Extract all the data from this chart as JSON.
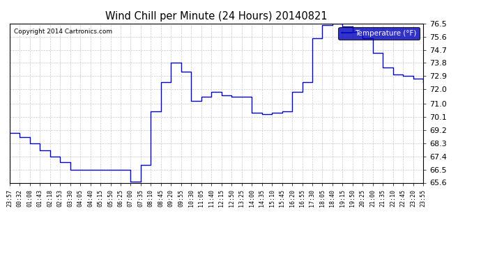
{
  "title": "Wind Chill per Minute (24 Hours) 20140821",
  "copyright": "Copyright 2014 Cartronics.com",
  "legend_label": "Temperature (°F)",
  "legend_bg": "#0000bb",
  "legend_text_color": "#ffffff",
  "line_color": "#0000cc",
  "background_color": "#ffffff",
  "grid_color": "#bbbbbb",
  "ylim": [
    65.6,
    76.5
  ],
  "yticks": [
    65.6,
    66.5,
    67.4,
    68.3,
    69.2,
    70.1,
    71.0,
    72.0,
    72.9,
    73.8,
    74.7,
    75.6,
    76.5
  ],
  "xtick_labels": [
    "23:57",
    "00:32",
    "01:08",
    "01:43",
    "02:18",
    "02:53",
    "03:30",
    "04:05",
    "04:40",
    "05:15",
    "05:50",
    "06:25",
    "07:00",
    "07:35",
    "08:10",
    "08:45",
    "09:20",
    "09:55",
    "10:30",
    "11:05",
    "11:40",
    "12:15",
    "12:50",
    "13:25",
    "14:00",
    "14:35",
    "15:10",
    "15:45",
    "16:20",
    "16:55",
    "17:30",
    "18:05",
    "18:40",
    "19:15",
    "19:50",
    "20:25",
    "21:00",
    "21:35",
    "22:10",
    "22:45",
    "23:20",
    "23:55"
  ],
  "data_x": [
    0,
    1,
    2,
    3,
    4,
    5,
    6,
    7,
    8,
    9,
    10,
    11,
    12,
    13,
    14,
    15,
    16,
    17,
    18,
    19,
    20,
    21,
    22,
    23,
    24,
    25,
    26,
    27,
    28,
    29,
    30,
    31,
    32,
    33,
    34,
    35,
    36,
    37,
    38,
    39,
    40,
    41
  ],
  "data_y": [
    69.0,
    68.7,
    68.3,
    67.8,
    67.4,
    67.0,
    66.5,
    66.5,
    66.5,
    66.5,
    66.5,
    66.5,
    65.65,
    66.8,
    70.5,
    72.5,
    73.8,
    73.2,
    71.2,
    71.5,
    71.8,
    71.6,
    71.5,
    71.5,
    70.4,
    70.3,
    70.4,
    70.5,
    71.8,
    72.5,
    75.5,
    76.4,
    76.5,
    76.3,
    75.9,
    75.5,
    74.5,
    73.5,
    73.0,
    72.9,
    72.7,
    72.5
  ]
}
